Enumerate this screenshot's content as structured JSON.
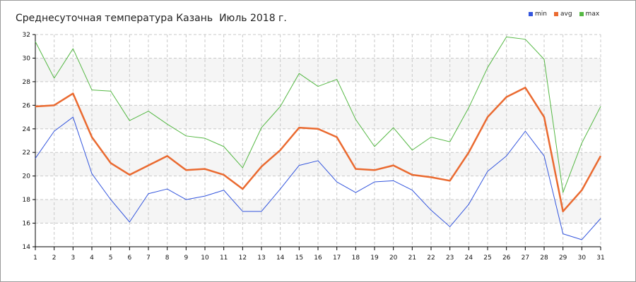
{
  "chart_data": {
    "type": "line",
    "title": "Среднесуточная температура Казань  Июль 2018 г.",
    "xlabel": "",
    "ylabel": "",
    "x": [
      1,
      2,
      3,
      4,
      5,
      6,
      7,
      8,
      9,
      10,
      11,
      12,
      13,
      14,
      15,
      16,
      17,
      18,
      19,
      20,
      21,
      22,
      23,
      24,
      25,
      26,
      27,
      28,
      29,
      30,
      31
    ],
    "xlim": [
      1,
      31
    ],
    "ylim": [
      14,
      32
    ],
    "y_ticks": [
      14,
      16,
      18,
      20,
      22,
      24,
      26,
      28,
      30,
      32
    ],
    "grid": true,
    "legend_position": "top-right",
    "series": [
      {
        "name": "min",
        "color": "#3355dd",
        "values": [
          21.5,
          23.8,
          25.0,
          20.2,
          18.0,
          16.1,
          18.5,
          18.9,
          18.0,
          18.3,
          18.8,
          17.0,
          17.0,
          18.9,
          20.9,
          21.3,
          19.5,
          18.6,
          19.5,
          19.6,
          18.8,
          17.1,
          15.7,
          17.6,
          20.4,
          21.7,
          23.8,
          21.7,
          15.1,
          14.6,
          16.4
        ]
      },
      {
        "name": "avg",
        "color": "#ea6a30",
        "values": [
          25.9,
          26.0,
          27.0,
          23.3,
          21.1,
          20.1,
          20.9,
          21.7,
          20.5,
          20.6,
          20.1,
          18.9,
          20.8,
          22.2,
          24.1,
          24.0,
          23.3,
          20.6,
          20.5,
          20.9,
          20.1,
          19.9,
          19.6,
          22.0,
          25.0,
          26.7,
          27.5,
          25.0,
          17.0,
          18.8,
          21.7
        ]
      },
      {
        "name": "max",
        "color": "#55b844",
        "values": [
          31.4,
          28.3,
          30.8,
          27.3,
          27.2,
          24.7,
          25.5,
          24.4,
          23.4,
          23.2,
          22.5,
          20.7,
          24.1,
          25.9,
          28.7,
          27.6,
          28.2,
          24.8,
          22.5,
          24.1,
          22.2,
          23.3,
          22.9,
          25.8,
          29.2,
          31.8,
          31.6,
          29.9,
          18.6,
          22.8,
          25.9
        ]
      }
    ]
  }
}
